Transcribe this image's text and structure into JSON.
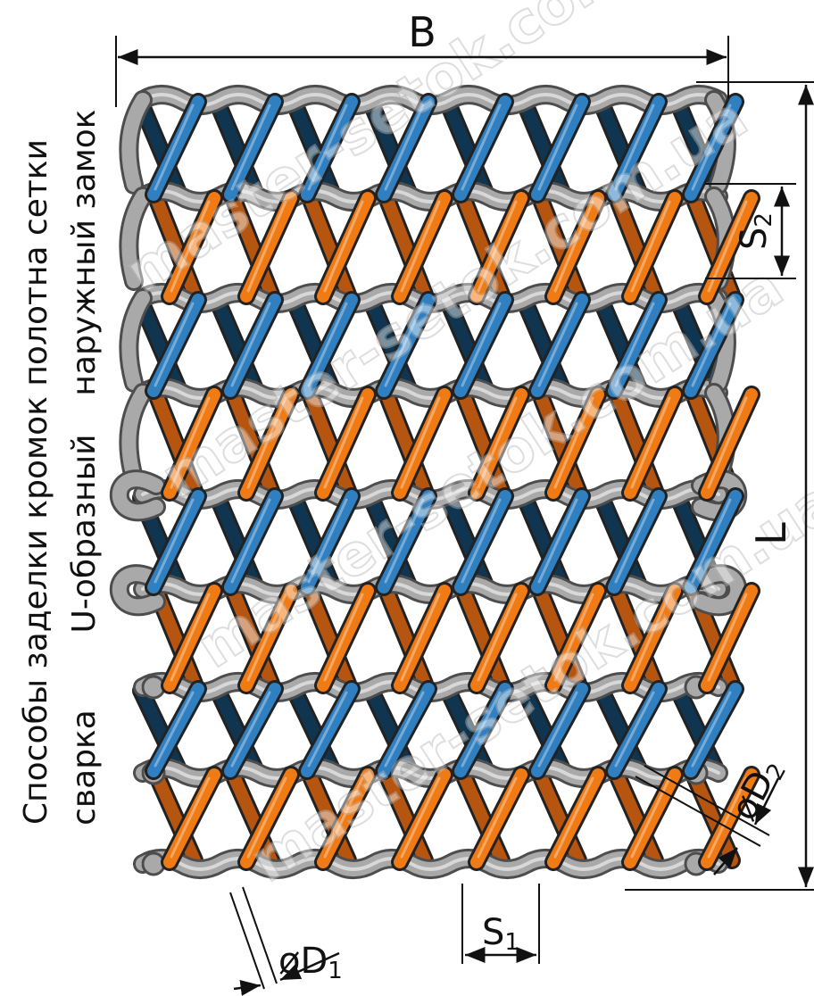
{
  "title": "Способы заделки кромок полотна сетки",
  "edge_methods": {
    "outer_lock": "наружный замок",
    "u_shaped": "U-образный",
    "welding": "сварка"
  },
  "dimensions": {
    "width": "B",
    "length": "L",
    "step_long": "S",
    "step_long_sub": "2",
    "step_cross": "S",
    "step_cross_sub": "1",
    "dia_spiral_prefix": "øD",
    "dia_spiral_sub": "1",
    "dia_rod_prefix": "øD",
    "dia_rod_sub": "2"
  },
  "watermark": "master-setok.com.ua",
  "colors": {
    "spiral_blue": "#2f7fc1",
    "spiral_blue_back": "#0f3550",
    "spiral_orange": "#f07a14",
    "spiral_orange_back": "#b55510",
    "rod_grey": "#a9a9a9",
    "rod_edge": "#555555"
  }
}
